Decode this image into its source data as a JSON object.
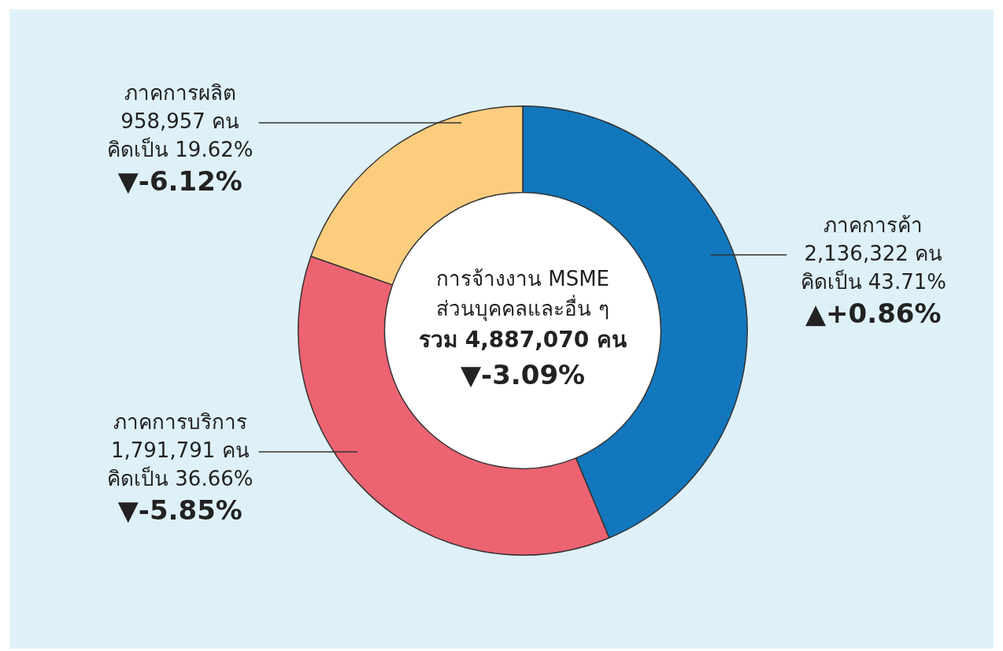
{
  "chart_data": {
    "type": "donut",
    "title": "การจ้างงาน MSME ส่วนบุคคลและอื่น ๆ",
    "subtitle": "รวม 4,887,070 คน",
    "categories": [
      "ภาคการค้า",
      "ภาคการบริการ",
      "ภาคการผลิต"
    ],
    "values": [
      2136322,
      1791791,
      958957
    ],
    "colors": [
      "#1277bd",
      "#ec6372",
      "#fdcd7e"
    ],
    "value_labels": [
      "2,136,322 คน",
      "1,791,791 คน",
      "958,957 คน"
    ],
    "annotations": [
      {
        "text": "▼-3.09%"
      },
      {
        "text": "คิดเป็น 43.71%",
        "x": "ภาคการค้า"
      },
      {
        "text": "▲+0.86%",
        "x": "ภาคการค้า"
      },
      {
        "text": "คิดเป็น 36.66%",
        "x": "ภาคการบริการ"
      },
      {
        "text": "▼-5.85%",
        "x": "ภาคการบริการ"
      },
      {
        "text": "คิดเป็น 19.62%",
        "x": "ภาคการผลิต"
      },
      {
        "text": "▼-6.12%",
        "x": "ภาคการผลิต"
      }
    ],
    "legend": false
  }
}
